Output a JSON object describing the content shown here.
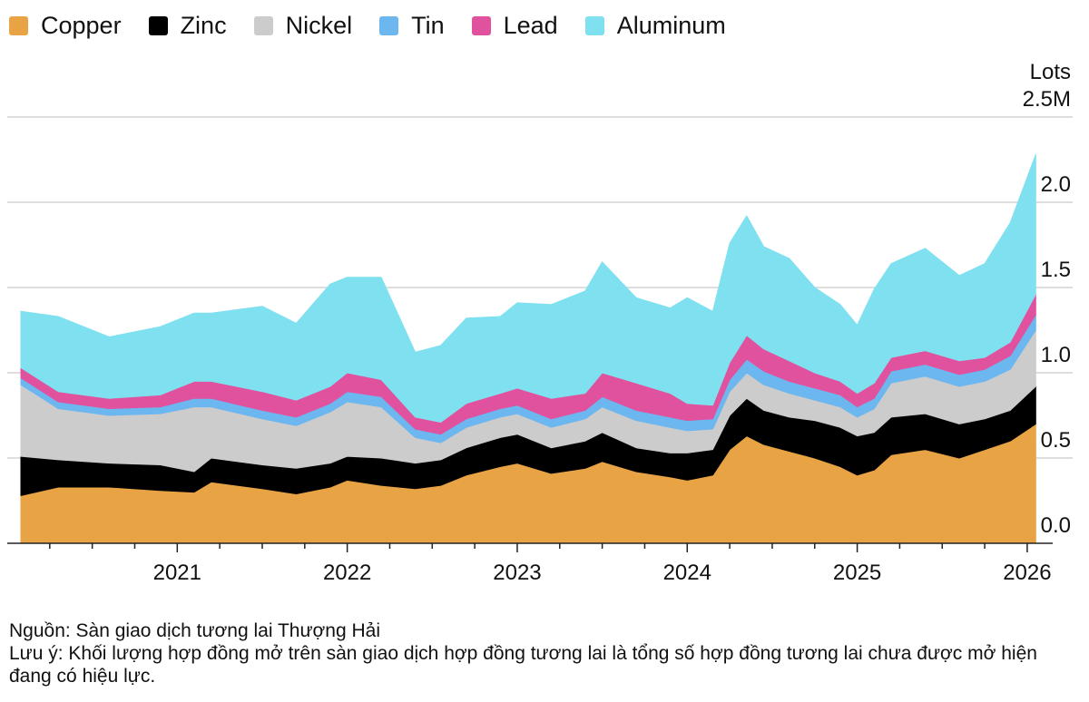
{
  "chart_data": {
    "type": "area",
    "stacked": true,
    "unit_label": "Lots",
    "yaxis_side": "right",
    "ylim": [
      0,
      2.5
    ],
    "yticks": [
      {
        "value": 0.0,
        "label": "0.0"
      },
      {
        "value": 0.5,
        "label": "0.5"
      },
      {
        "value": 1.0,
        "label": "1.0"
      },
      {
        "value": 1.5,
        "label": "1.5"
      },
      {
        "value": 2.0,
        "label": "2.0"
      },
      {
        "value": 2.5,
        "label": "2.5M"
      }
    ],
    "xlim": [
      2020.0,
      2026.15
    ],
    "xticks": [
      {
        "value": 2021.0,
        "label": "2021"
      },
      {
        "value": 2022.0,
        "label": "2022"
      },
      {
        "value": 2023.0,
        "label": "2023"
      },
      {
        "value": 2024.0,
        "label": "2024"
      },
      {
        "value": 2025.0,
        "label": "2025"
      },
      {
        "value": 2026.0,
        "label": "2026"
      }
    ],
    "legend_position": "top-left",
    "grid": true,
    "series": [
      {
        "name": "Copper",
        "color": "#E8A345",
        "points": [
          [
            2020.08,
            0.28
          ],
          [
            2020.3,
            0.33
          ],
          [
            2020.6,
            0.33
          ],
          [
            2020.9,
            0.31
          ],
          [
            2021.1,
            0.3
          ],
          [
            2021.2,
            0.36
          ],
          [
            2021.5,
            0.32
          ],
          [
            2021.7,
            0.29
          ],
          [
            2021.9,
            0.33
          ],
          [
            2022.0,
            0.37
          ],
          [
            2022.2,
            0.34
          ],
          [
            2022.4,
            0.32
          ],
          [
            2022.55,
            0.34
          ],
          [
            2022.7,
            0.4
          ],
          [
            2022.9,
            0.45
          ],
          [
            2023.0,
            0.47
          ],
          [
            2023.2,
            0.41
          ],
          [
            2023.4,
            0.44
          ],
          [
            2023.5,
            0.48
          ],
          [
            2023.7,
            0.42
          ],
          [
            2023.9,
            0.39
          ],
          [
            2024.0,
            0.37
          ],
          [
            2024.15,
            0.4
          ],
          [
            2024.25,
            0.55
          ],
          [
            2024.35,
            0.63
          ],
          [
            2024.45,
            0.58
          ],
          [
            2024.6,
            0.54
          ],
          [
            2024.75,
            0.5
          ],
          [
            2024.9,
            0.45
          ],
          [
            2025.0,
            0.4
          ],
          [
            2025.1,
            0.43
          ],
          [
            2025.2,
            0.52
          ],
          [
            2025.4,
            0.55
          ],
          [
            2025.6,
            0.5
          ],
          [
            2025.75,
            0.55
          ],
          [
            2025.9,
            0.6
          ],
          [
            2026.05,
            0.7
          ]
        ]
      },
      {
        "name": "Zinc",
        "color": "#000000",
        "points": [
          [
            2020.08,
            0.23
          ],
          [
            2020.3,
            0.16
          ],
          [
            2020.6,
            0.14
          ],
          [
            2020.9,
            0.15
          ],
          [
            2021.1,
            0.12
          ],
          [
            2021.2,
            0.14
          ],
          [
            2021.5,
            0.14
          ],
          [
            2021.7,
            0.15
          ],
          [
            2021.9,
            0.14
          ],
          [
            2022.0,
            0.14
          ],
          [
            2022.2,
            0.16
          ],
          [
            2022.4,
            0.15
          ],
          [
            2022.55,
            0.15
          ],
          [
            2022.7,
            0.16
          ],
          [
            2022.9,
            0.17
          ],
          [
            2023.0,
            0.17
          ],
          [
            2023.2,
            0.15
          ],
          [
            2023.4,
            0.16
          ],
          [
            2023.5,
            0.17
          ],
          [
            2023.7,
            0.14
          ],
          [
            2023.9,
            0.14
          ],
          [
            2024.0,
            0.16
          ],
          [
            2024.15,
            0.15
          ],
          [
            2024.25,
            0.2
          ],
          [
            2024.35,
            0.22
          ],
          [
            2024.45,
            0.2
          ],
          [
            2024.6,
            0.2
          ],
          [
            2024.75,
            0.22
          ],
          [
            2024.9,
            0.23
          ],
          [
            2025.0,
            0.23
          ],
          [
            2025.1,
            0.22
          ],
          [
            2025.2,
            0.22
          ],
          [
            2025.4,
            0.21
          ],
          [
            2025.6,
            0.2
          ],
          [
            2025.75,
            0.18
          ],
          [
            2025.9,
            0.18
          ],
          [
            2026.05,
            0.22
          ]
        ]
      },
      {
        "name": "Nickel",
        "color": "#CCCCCC",
        "points": [
          [
            2020.08,
            0.42
          ],
          [
            2020.3,
            0.3
          ],
          [
            2020.6,
            0.28
          ],
          [
            2020.9,
            0.3
          ],
          [
            2021.1,
            0.38
          ],
          [
            2021.2,
            0.3
          ],
          [
            2021.5,
            0.27
          ],
          [
            2021.7,
            0.25
          ],
          [
            2021.9,
            0.3
          ],
          [
            2022.0,
            0.32
          ],
          [
            2022.2,
            0.3
          ],
          [
            2022.4,
            0.15
          ],
          [
            2022.55,
            0.1
          ],
          [
            2022.7,
            0.12
          ],
          [
            2022.9,
            0.12
          ],
          [
            2023.0,
            0.12
          ],
          [
            2023.2,
            0.12
          ],
          [
            2023.4,
            0.13
          ],
          [
            2023.5,
            0.15
          ],
          [
            2023.7,
            0.16
          ],
          [
            2023.9,
            0.15
          ],
          [
            2024.0,
            0.13
          ],
          [
            2024.15,
            0.12
          ],
          [
            2024.25,
            0.14
          ],
          [
            2024.35,
            0.15
          ],
          [
            2024.45,
            0.15
          ],
          [
            2024.6,
            0.14
          ],
          [
            2024.75,
            0.12
          ],
          [
            2024.9,
            0.12
          ],
          [
            2025.0,
            0.11
          ],
          [
            2025.1,
            0.14
          ],
          [
            2025.2,
            0.2
          ],
          [
            2025.4,
            0.22
          ],
          [
            2025.6,
            0.22
          ],
          [
            2025.75,
            0.22
          ],
          [
            2025.9,
            0.24
          ],
          [
            2026.05,
            0.33
          ]
        ]
      },
      {
        "name": "Tin",
        "color": "#6CB7F0",
        "points": [
          [
            2020.08,
            0.04
          ],
          [
            2020.3,
            0.04
          ],
          [
            2020.6,
            0.04
          ],
          [
            2020.9,
            0.04
          ],
          [
            2021.1,
            0.05
          ],
          [
            2021.2,
            0.05
          ],
          [
            2021.5,
            0.05
          ],
          [
            2021.7,
            0.05
          ],
          [
            2021.9,
            0.05
          ],
          [
            2022.0,
            0.06
          ],
          [
            2022.2,
            0.06
          ],
          [
            2022.4,
            0.05
          ],
          [
            2022.55,
            0.05
          ],
          [
            2022.7,
            0.05
          ],
          [
            2022.9,
            0.05
          ],
          [
            2023.0,
            0.05
          ],
          [
            2023.2,
            0.05
          ],
          [
            2023.4,
            0.05
          ],
          [
            2023.5,
            0.06
          ],
          [
            2023.7,
            0.06
          ],
          [
            2023.9,
            0.06
          ],
          [
            2024.0,
            0.06
          ],
          [
            2024.15,
            0.06
          ],
          [
            2024.25,
            0.07
          ],
          [
            2024.35,
            0.08
          ],
          [
            2024.45,
            0.08
          ],
          [
            2024.6,
            0.07
          ],
          [
            2024.75,
            0.07
          ],
          [
            2024.9,
            0.07
          ],
          [
            2025.0,
            0.06
          ],
          [
            2025.1,
            0.06
          ],
          [
            2025.2,
            0.07
          ],
          [
            2025.4,
            0.07
          ],
          [
            2025.6,
            0.07
          ],
          [
            2025.75,
            0.07
          ],
          [
            2025.9,
            0.08
          ],
          [
            2026.05,
            0.09
          ]
        ]
      },
      {
        "name": "Lead",
        "color": "#E0529E",
        "points": [
          [
            2020.08,
            0.06
          ],
          [
            2020.3,
            0.06
          ],
          [
            2020.6,
            0.06
          ],
          [
            2020.9,
            0.07
          ],
          [
            2021.1,
            0.1
          ],
          [
            2021.2,
            0.1
          ],
          [
            2021.5,
            0.11
          ],
          [
            2021.7,
            0.1
          ],
          [
            2021.9,
            0.1
          ],
          [
            2022.0,
            0.11
          ],
          [
            2022.2,
            0.1
          ],
          [
            2022.4,
            0.07
          ],
          [
            2022.55,
            0.07
          ],
          [
            2022.7,
            0.09
          ],
          [
            2022.9,
            0.09
          ],
          [
            2023.0,
            0.1
          ],
          [
            2023.2,
            0.12
          ],
          [
            2023.4,
            0.1
          ],
          [
            2023.5,
            0.14
          ],
          [
            2023.7,
            0.16
          ],
          [
            2023.9,
            0.14
          ],
          [
            2024.0,
            0.1
          ],
          [
            2024.15,
            0.08
          ],
          [
            2024.25,
            0.1
          ],
          [
            2024.35,
            0.14
          ],
          [
            2024.45,
            0.13
          ],
          [
            2024.6,
            0.12
          ],
          [
            2024.75,
            0.09
          ],
          [
            2024.9,
            0.08
          ],
          [
            2025.0,
            0.08
          ],
          [
            2025.1,
            0.09
          ],
          [
            2025.2,
            0.08
          ],
          [
            2025.4,
            0.08
          ],
          [
            2025.6,
            0.08
          ],
          [
            2025.75,
            0.07
          ],
          [
            2025.9,
            0.08
          ],
          [
            2026.05,
            0.12
          ]
        ]
      },
      {
        "name": "Aluminum",
        "color": "#7FE0F0",
        "points": [
          [
            2020.08,
            0.33
          ],
          [
            2020.3,
            0.44
          ],
          [
            2020.6,
            0.36
          ],
          [
            2020.9,
            0.4
          ],
          [
            2021.1,
            0.4
          ],
          [
            2021.2,
            0.4
          ],
          [
            2021.5,
            0.5
          ],
          [
            2021.7,
            0.45
          ],
          [
            2021.9,
            0.6
          ],
          [
            2022.0,
            0.56
          ],
          [
            2022.2,
            0.6
          ],
          [
            2022.4,
            0.38
          ],
          [
            2022.55,
            0.45
          ],
          [
            2022.7,
            0.5
          ],
          [
            2022.9,
            0.45
          ],
          [
            2023.0,
            0.5
          ],
          [
            2023.2,
            0.55
          ],
          [
            2023.4,
            0.6
          ],
          [
            2023.5,
            0.65
          ],
          [
            2023.7,
            0.5
          ],
          [
            2023.9,
            0.5
          ],
          [
            2024.0,
            0.62
          ],
          [
            2024.15,
            0.55
          ],
          [
            2024.25,
            0.7
          ],
          [
            2024.35,
            0.7
          ],
          [
            2024.45,
            0.6
          ],
          [
            2024.6,
            0.6
          ],
          [
            2024.75,
            0.5
          ],
          [
            2024.9,
            0.45
          ],
          [
            2025.0,
            0.4
          ],
          [
            2025.1,
            0.55
          ],
          [
            2025.2,
            0.55
          ],
          [
            2025.4,
            0.6
          ],
          [
            2025.6,
            0.5
          ],
          [
            2025.75,
            0.55
          ],
          [
            2025.9,
            0.7
          ],
          [
            2026.05,
            0.82
          ]
        ]
      }
    ]
  },
  "footer": {
    "source": "Nguồn: Sàn giao dịch tương lai Thượng Hải",
    "note": "Lưu ý: Khối lượng hợp đồng mở trên sàn giao dịch hợp đồng tương lai là tổng số hợp đồng tương lai chưa được mở hiện đang có hiệu lực."
  }
}
